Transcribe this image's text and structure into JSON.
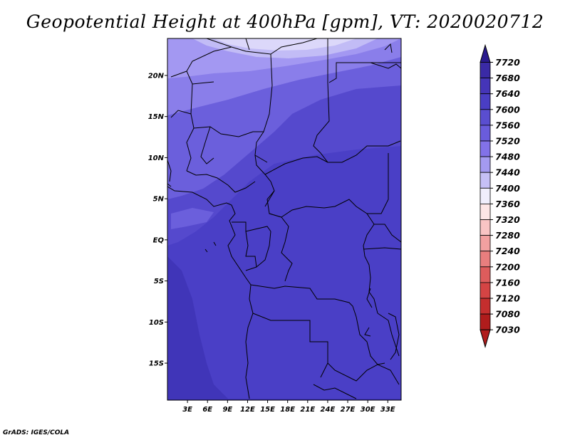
{
  "title": "Geopotential Height at 400hPa [gpm], VT: 2020020712",
  "credit": "GrADS: IGES/COLA",
  "chart_data": {
    "type": "heatmap",
    "title": "Geopotential Height at 400hPa [gpm], VT: 2020020712",
    "variable": "Geopotential Height",
    "level": "400hPa",
    "units": "gpm",
    "valid_time": "2020020712",
    "x_ticks": [
      3,
      6,
      9,
      12,
      15,
      18,
      21,
      24,
      27,
      30,
      33
    ],
    "x_tick_labels": [
      "3E",
      "6E",
      "9E",
      "12E",
      "15E",
      "18E",
      "21E",
      "24E",
      "27E",
      "30E",
      "33E"
    ],
    "y_ticks": [
      20,
      15,
      10,
      5,
      0,
      -5,
      -10,
      -15
    ],
    "y_tick_labels": [
      "20N",
      "15N",
      "10N",
      "5N",
      "EQ",
      "5S",
      "10S",
      "15S"
    ],
    "xlim": [
      0,
      35
    ],
    "ylim": [
      -19.5,
      24.5
    ],
    "colorbar": {
      "levels": [
        7720,
        7680,
        7640,
        7600,
        7560,
        7520,
        7480,
        7440,
        7400,
        7360,
        7320,
        7280,
        7240,
        7200,
        7160,
        7120,
        7080,
        7030
      ],
      "colors": [
        "#2a1a8e",
        "#3a2aa6",
        "#4535b8",
        "#4a3ec4",
        "#5a4ed0",
        "#6a5cdc",
        "#8272e8",
        "#a49af0",
        "#c6c0f6",
        "#f0eefc",
        "#fde6e6",
        "#f9c4c4",
        "#f2a0a0",
        "#e87e7e",
        "#de5c5c",
        "#d44444",
        "#c42e2e",
        "#b01c1c"
      ],
      "placement": "right"
    },
    "field_bands": [
      {
        "value": 7460,
        "color": "#dcd8fa"
      },
      {
        "value": 7480,
        "color": "#c2bcf6"
      },
      {
        "value": 7520,
        "color": "#a398f2"
      },
      {
        "value": 7560,
        "color": "#8a7eea"
      },
      {
        "value": 7600,
        "color": "#6b5fdc"
      },
      {
        "value": 7640,
        "color": "#5549cd"
      },
      {
        "value": 7680,
        "color": "#4a3fc6"
      },
      {
        "value": 7720,
        "color": "#4035b8"
      }
    ]
  }
}
